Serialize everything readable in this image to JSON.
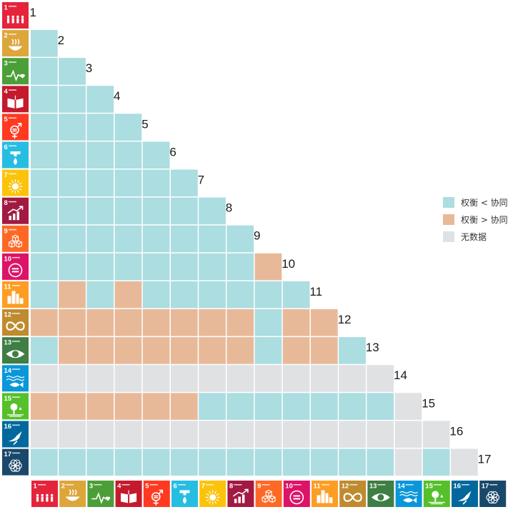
{
  "chart_data": {
    "type": "heatmap",
    "title": "",
    "goals": [
      "1",
      "2",
      "3",
      "4",
      "5",
      "6",
      "7",
      "8",
      "9",
      "10",
      "11",
      "12",
      "13",
      "14",
      "15",
      "16",
      "17"
    ],
    "goal_colors": [
      "#e5243b",
      "#dda63a",
      "#4c9f38",
      "#c5192d",
      "#ff3a21",
      "#26bde2",
      "#fcc30b",
      "#a21942",
      "#fd6925",
      "#dd1367",
      "#fd9d24",
      "#bf8b2e",
      "#3f7e44",
      "#0a97d9",
      "#56c02b",
      "#00689d",
      "#19486a"
    ],
    "goal_icons": [
      "people-icon",
      "bowl-icon",
      "heartbeat-icon",
      "book-icon",
      "gender-icon",
      "water-drop-icon",
      "sun-icon",
      "growth-chart-icon",
      "cubes-icon",
      "equality-icon",
      "city-icon",
      "infinity-icon",
      "eye-earth-icon",
      "fish-icon",
      "tree-icon",
      "dove-icon",
      "flower-icon"
    ],
    "legend": [
      {
        "key": "S",
        "label": "权衡 < 协同",
        "color": "#abdde1"
      },
      {
        "key": "T",
        "label": "权衡 > 协同",
        "color": "#e8b999"
      },
      {
        "key": "N",
        "label": "无数据",
        "color": "#e0e1e3"
      }
    ],
    "legend_position": "right",
    "matrix": [
      "",
      "S",
      "SS",
      "SSS",
      "SSSS",
      "SSSSS",
      "SSSSSS",
      "SSSSSSS",
      "SSSSSSSS",
      "SSSSSSSST",
      "STSTSSSSSS",
      "TTTTTTTTSTT",
      "STTTTTTTSTTS",
      "NNNNNNNNNNNNN",
      "TTTTTTSSSSSSSN",
      "NNNNNNNNNNNNNNN",
      "SSSSSSSSSSSSSNSN"
    ]
  }
}
